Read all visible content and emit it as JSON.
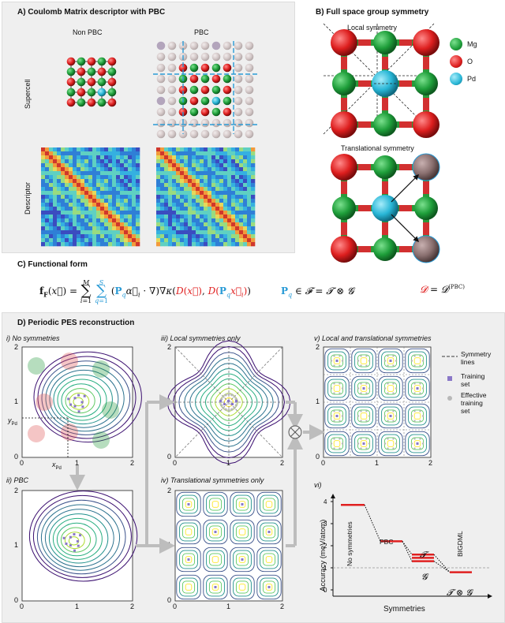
{
  "panelA": {
    "title": "A)   Coulomb Matrix descriptor with PBC",
    "col_nonpbc": "Non PBC",
    "col_pbc": "PBC",
    "row_supercell": "Supercell",
    "row_descriptor": "Descriptor"
  },
  "panelB": {
    "title": "B)   Full space group symmetry",
    "local": "Local symmetry",
    "translational": "Translational symmetry",
    "legend": [
      {
        "label": "Mg",
        "color": "#1e9e3a"
      },
      {
        "label": "O",
        "color": "#dd1e1e"
      },
      {
        "label": "Pd",
        "color": "#28b6d6"
      }
    ]
  },
  "panelC": {
    "title": "C)   Functional form"
  },
  "panelD": {
    "title": "D)   Periodic PES reconstruction",
    "i": "i)  No symmetries",
    "ii": "ii)  PBC",
    "iii": "iii)  Local symmetries only",
    "iv": "iv)  Translational symmetries only",
    "v": "v)  Local and translational symmetries",
    "vi": "vi)",
    "ticks": [
      "0",
      "1",
      "2"
    ],
    "ypd": "y",
    "xpd": "x",
    "pd_sub": "Pd",
    "legend": {
      "symmetry": "Symmetry\nlines",
      "training": "Training\nset",
      "effective": "Effective\ntraining\nset"
    },
    "accuracy_chart": {
      "ylabel": "Accuracy (meV/atom)",
      "xlabel": "Symmetries",
      "yticks": [
        "0",
        "1",
        "2",
        "3",
        "4"
      ],
      "labels": [
        "No symmetries",
        "PBC",
        "BIGDML"
      ]
    }
  },
  "colors": {
    "mg": "#1e9e3a",
    "o": "#dd1e1e",
    "pd": "#28b6d6",
    "panel_bg": "#efefef",
    "arrow_gray": "#bdbdbd",
    "accuracy_red": "#e02020"
  }
}
